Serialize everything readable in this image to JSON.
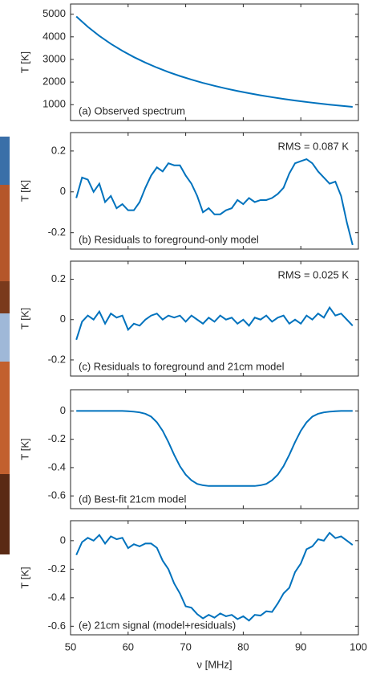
{
  "chart_data": [
    {
      "type": "line",
      "ylabel": "T [K]",
      "annotation": "(a) Observed spectrum",
      "color": "#0072bd",
      "xlim": [
        50,
        100
      ],
      "ylim": [
        300,
        5450
      ],
      "yticks": [
        1000,
        2000,
        3000,
        4000,
        5000
      ],
      "x": [
        51,
        53,
        55,
        57,
        59,
        61,
        63,
        65,
        67,
        69,
        71,
        73,
        75,
        77,
        79,
        81,
        83,
        85,
        87,
        89,
        91,
        93,
        95,
        97,
        99
      ],
      "values": [
        4900,
        4442,
        4042,
        3690,
        3380,
        3104,
        2859,
        2640,
        2443,
        2267,
        2108,
        1963,
        1833,
        1714,
        1605,
        1506,
        1415,
        1332,
        1255,
        1184,
        1119,
        1059,
        1003,
        951,
        903
      ]
    },
    {
      "type": "line",
      "ylabel": "T [K]",
      "annotation": "(b) Residuals to foreground-only model",
      "rms": "RMS = 0.087 K",
      "color": "#0072bd",
      "xlim": [
        50,
        100
      ],
      "ylim": [
        -0.28,
        0.29
      ],
      "yticks": [
        -0.2,
        0,
        0.2
      ],
      "x": [
        51,
        52,
        53,
        54,
        55,
        56,
        57,
        58,
        59,
        60,
        61,
        62,
        63,
        64,
        65,
        66,
        67,
        68,
        69,
        70,
        71,
        72,
        73,
        74,
        75,
        76,
        77,
        78,
        79,
        80,
        81,
        82,
        83,
        84,
        85,
        86,
        87,
        88,
        89,
        90,
        91,
        92,
        93,
        94,
        95,
        96,
        97,
        98,
        99
      ],
      "values": [
        -0.03,
        0.07,
        0.06,
        0.0,
        0.04,
        -0.05,
        -0.02,
        -0.08,
        -0.06,
        -0.09,
        -0.09,
        -0.05,
        0.02,
        0.08,
        0.12,
        0.1,
        0.14,
        0.13,
        0.13,
        0.08,
        0.04,
        -0.02,
        -0.1,
        -0.08,
        -0.11,
        -0.11,
        -0.09,
        -0.08,
        -0.04,
        -0.06,
        -0.03,
        -0.05,
        -0.04,
        -0.04,
        -0.03,
        -0.01,
        0.02,
        0.09,
        0.14,
        0.15,
        0.16,
        0.14,
        0.1,
        0.07,
        0.04,
        0.05,
        -0.02,
        -0.15,
        -0.26
      ]
    },
    {
      "type": "line",
      "ylabel": "T [K]",
      "annotation": "(c) Residuals to foreground and 21cm model",
      "rms": "RMS = 0.025 K",
      "color": "#0072bd",
      "xlim": [
        50,
        100
      ],
      "ylim": [
        -0.28,
        0.29
      ],
      "yticks": [
        -0.2,
        0,
        0.2
      ],
      "x": [
        51,
        52,
        53,
        54,
        55,
        56,
        57,
        58,
        59,
        60,
        61,
        62,
        63,
        64,
        65,
        66,
        67,
        68,
        69,
        70,
        71,
        72,
        73,
        74,
        75,
        76,
        77,
        78,
        79,
        80,
        81,
        82,
        83,
        84,
        85,
        86,
        87,
        88,
        89,
        90,
        91,
        92,
        93,
        94,
        95,
        96,
        97,
        98,
        99
      ],
      "values": [
        -0.1,
        -0.01,
        0.02,
        0.0,
        0.04,
        -0.02,
        0.03,
        0.01,
        0.02,
        -0.05,
        -0.02,
        -0.03,
        0.0,
        0.02,
        0.03,
        0.0,
        0.02,
        0.01,
        0.02,
        -0.01,
        0.02,
        0.0,
        -0.02,
        0.01,
        -0.01,
        0.02,
        0.0,
        0.01,
        -0.02,
        0.0,
        -0.03,
        0.01,
        0.0,
        0.02,
        -0.01,
        0.01,
        0.02,
        -0.02,
        0.0,
        -0.02,
        0.02,
        0.0,
        0.03,
        0.01,
        0.06,
        0.02,
        0.03,
        0.0,
        -0.03
      ]
    },
    {
      "type": "line",
      "ylabel": "T [K]",
      "annotation": "(d) Best-fit 21cm model",
      "color": "#0072bd",
      "xlim": [
        50,
        100
      ],
      "ylim": [
        -0.69,
        0.15
      ],
      "yticks": [
        -0.6,
        -0.4,
        -0.2,
        0
      ],
      "x": [
        51,
        52,
        53,
        54,
        55,
        56,
        57,
        58,
        59,
        60,
        61,
        62,
        63,
        64,
        65,
        66,
        67,
        68,
        69,
        70,
        71,
        72,
        73,
        74,
        75,
        76,
        77,
        78,
        79,
        80,
        81,
        82,
        83,
        84,
        85,
        86,
        87,
        88,
        89,
        90,
        91,
        92,
        93,
        94,
        95,
        96,
        97,
        98,
        99
      ],
      "values": [
        0,
        0,
        0,
        0,
        0,
        0,
        0,
        0,
        0,
        -0.002,
        -0.005,
        -0.01,
        -0.02,
        -0.04,
        -0.08,
        -0.14,
        -0.22,
        -0.31,
        -0.39,
        -0.45,
        -0.49,
        -0.515,
        -0.525,
        -0.53,
        -0.53,
        -0.53,
        -0.53,
        -0.53,
        -0.53,
        -0.53,
        -0.53,
        -0.53,
        -0.525,
        -0.515,
        -0.49,
        -0.45,
        -0.39,
        -0.31,
        -0.22,
        -0.14,
        -0.08,
        -0.04,
        -0.02,
        -0.01,
        -0.005,
        -0.002,
        0,
        0,
        0
      ]
    },
    {
      "type": "line",
      "ylabel": "T [K]",
      "xlabel": "ν [MHz]",
      "annotation": "(e) 21cm signal (model+residuals)",
      "color": "#0072bd",
      "xlim": [
        50,
        100
      ],
      "xticks": [
        50,
        60,
        70,
        80,
        90,
        100
      ],
      "ylim": [
        -0.66,
        0.14
      ],
      "yticks": [
        -0.6,
        -0.4,
        -0.2,
        0
      ],
      "x": [
        51,
        52,
        53,
        54,
        55,
        56,
        57,
        58,
        59,
        60,
        61,
        62,
        63,
        64,
        65,
        66,
        67,
        68,
        69,
        70,
        71,
        72,
        73,
        74,
        75,
        76,
        77,
        78,
        79,
        80,
        81,
        82,
        83,
        84,
        85,
        86,
        87,
        88,
        89,
        90,
        91,
        92,
        93,
        94,
        95,
        96,
        97,
        98,
        99
      ],
      "values": [
        -0.1,
        -0.01,
        0.02,
        0.0,
        0.04,
        -0.02,
        0.03,
        0.01,
        0.02,
        -0.052,
        -0.025,
        -0.04,
        -0.02,
        -0.02,
        -0.05,
        -0.14,
        -0.2,
        -0.3,
        -0.37,
        -0.46,
        -0.47,
        -0.515,
        -0.545,
        -0.52,
        -0.54,
        -0.51,
        -0.53,
        -0.52,
        -0.55,
        -0.53,
        -0.56,
        -0.52,
        -0.525,
        -0.495,
        -0.5,
        -0.44,
        -0.37,
        -0.33,
        -0.22,
        -0.16,
        -0.06,
        -0.04,
        0.01,
        0.0,
        0.055,
        0.018,
        0.03,
        0.0,
        -0.03
      ]
    }
  ]
}
